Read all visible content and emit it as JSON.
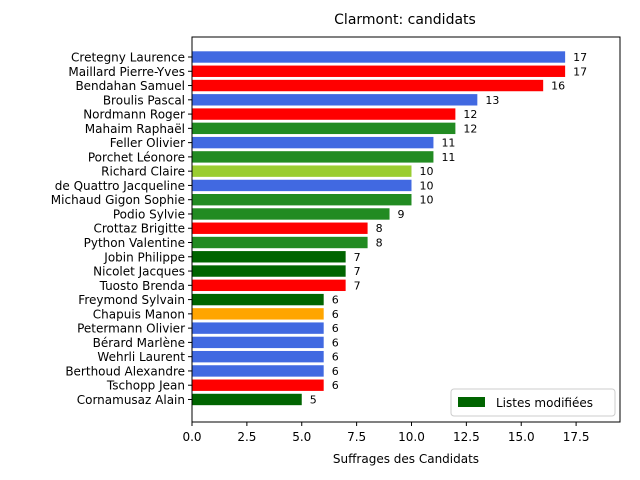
{
  "chart_data": {
    "type": "bar",
    "orientation": "horizontal",
    "title": "Clarmont: candidats",
    "xlabel": "Suffrages des Candidats",
    "ylabel": "",
    "xlim": [
      0,
      19.5
    ],
    "x_ticks": [
      "0.0",
      "2.5",
      "5.0",
      "7.5",
      "10.0",
      "12.5",
      "15.0",
      "17.5"
    ],
    "grid": false,
    "legend": {
      "placement": "lower-right",
      "entries": [
        {
          "label": "Listes modifiées",
          "color": "#006400"
        }
      ]
    },
    "categories": [
      "Cretegny Laurence",
      "Maillard Pierre-Yves",
      "Bendahan Samuel",
      "Broulis Pascal",
      "Nordmann Roger",
      "Mahaim Raphaël",
      "Feller Olivier",
      "Porchet Léonore",
      "Richard Claire",
      "de Quattro Jacqueline",
      "Michaud Gigon Sophie",
      "Podio Sylvie",
      "Crottaz Brigitte",
      "Python Valentine",
      "Jobin Philippe",
      "Nicolet Jacques",
      "Tuosto Brenda",
      "Freymond Sylvain",
      "Chapuis Manon",
      "Petermann Olivier",
      "Bérard Marlène",
      "Wehrli Laurent",
      "Berthoud Alexandre",
      "Tschopp Jean",
      "Cornamusaz Alain"
    ],
    "values": [
      17,
      17,
      16,
      13,
      12,
      12,
      11,
      11,
      10,
      10,
      10,
      9,
      8,
      8,
      7,
      7,
      7,
      6,
      6,
      6,
      6,
      6,
      6,
      6,
      5
    ],
    "colors": [
      "#4169e1",
      "#ff0000",
      "#ff0000",
      "#4169e1",
      "#ff0000",
      "#228b22",
      "#4169e1",
      "#228b22",
      "#9acd32",
      "#4169e1",
      "#228b22",
      "#228b22",
      "#ff0000",
      "#228b22",
      "#006400",
      "#006400",
      "#ff0000",
      "#006400",
      "#ffa500",
      "#4169e1",
      "#4169e1",
      "#4169e1",
      "#4169e1",
      "#ff0000",
      "#006400"
    ]
  }
}
